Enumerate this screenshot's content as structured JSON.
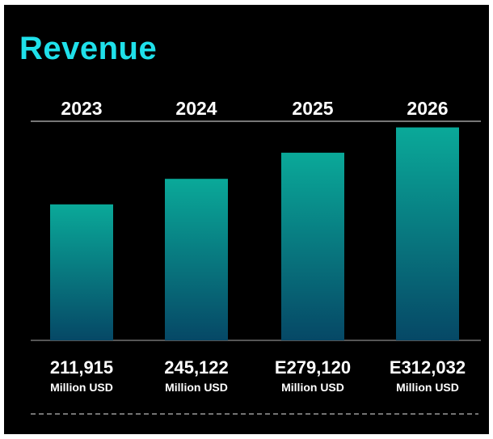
{
  "chart_data": {
    "type": "bar",
    "title": "Revenue",
    "categories": [
      "2023",
      "2024",
      "2025",
      "2026"
    ],
    "values": [
      211915,
      245122,
      279120,
      312032
    ],
    "value_labels": [
      "211,915",
      "245,122",
      "E279,120",
      "E312,032"
    ],
    "unit_label": "Million USD",
    "estimated": [
      false,
      false,
      true,
      true
    ],
    "ylim": [
      35000,
      320000
    ],
    "grid": false,
    "legend": "none",
    "colors": {
      "title": "#1fe0ea",
      "bar_top": "#0aa999",
      "bar_bottom": "#064866",
      "background": "#000000",
      "text": "#ffffff"
    }
  }
}
